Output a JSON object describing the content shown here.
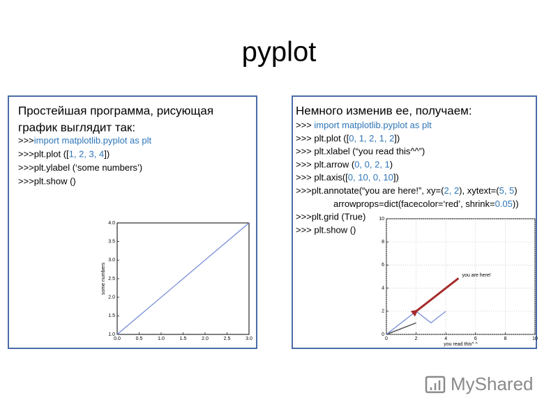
{
  "title": "pyplot",
  "left_panel": {
    "heading": [
      "Простейшая программа, рисующая",
      "график выглядит так:"
    ],
    "code": [
      [
        {
          "text": ">>>",
          "color": "#000000"
        },
        {
          "text": "import matplotlib.pyplot as plt",
          "color": "#2e75b6"
        }
      ],
      [
        {
          "text": ">>>plt.plot ([",
          "color": "#000000"
        },
        {
          "text": "1, 2, 3, 4",
          "color": "#2e75b6"
        },
        {
          "text": "])",
          "color": "#000000"
        }
      ],
      [
        {
          "text": ">>>plt.ylabel (‘some numbers’)",
          "color": "#000000"
        }
      ],
      [
        {
          "text": ">>>plt.show ()",
          "color": "#000000"
        }
      ]
    ]
  },
  "right_panel": {
    "heading": [
      "Немного изменив ее, получаем:"
    ],
    "code": [
      [
        {
          "text": ">>> ",
          "color": "#000000"
        },
        {
          "text": "import matplotlib.pyplot as plt",
          "color": "#2e75b6"
        }
      ],
      [
        {
          "text": ">>> plt.plot ([",
          "color": "#000000"
        },
        {
          "text": "0, 1, 2, 1, 2",
          "color": "#2e75b6"
        },
        {
          "text": "])",
          "color": "#000000"
        }
      ],
      [
        {
          "text": ">>> plt.xlabel (“you read this^^”)",
          "color": "#000000"
        }
      ],
      [
        {
          "text": ">>> plt.arrow (",
          "color": "#000000"
        },
        {
          "text": "0, 0, 2, 1",
          "color": "#2e75b6"
        },
        {
          "text": ")",
          "color": "#000000"
        }
      ],
      [
        {
          "text": ">>> plt.axis([",
          "color": "#000000"
        },
        {
          "text": "0, 10, 0, 10",
          "color": "#2e75b6"
        },
        {
          "text": "])",
          "color": "#000000"
        }
      ],
      [
        {
          "text": ">>>plt.annotate(“you are here!”, xy=(",
          "color": "#000000"
        },
        {
          "text": "2, 2",
          "color": "#2e75b6"
        },
        {
          "text": "), xytext=(",
          "color": "#000000"
        },
        {
          "text": "5, 5",
          "color": "#2e75b6"
        },
        {
          "text": ")",
          "color": "#000000"
        }
      ],
      [
        {
          "text": "arrowprops=dict(facecolor=‘red’, shrink=",
          "color": "#000000"
        },
        {
          "text": "0.05",
          "color": "#2e75b6"
        },
        {
          "text": "))",
          "color": "#000000"
        }
      ],
      [
        {
          "text": ">>>plt.grid (True)",
          "color": "#000000"
        }
      ],
      [
        {
          "text": ">>> plt.show ()",
          "color": "#000000"
        }
      ]
    ]
  },
  "left_chart": {
    "type": "line",
    "ylabel": "some numbers",
    "x": [
      0,
      1,
      2,
      3
    ],
    "series": [
      {
        "color": "#6f86d6",
        "values": [
          1,
          2,
          3,
          4
        ]
      }
    ],
    "xlim": [
      0,
      3
    ],
    "ylim": [
      1,
      4
    ],
    "xticks": [
      {
        "value": 0,
        "label": "0.0"
      },
      {
        "value": 0.5,
        "label": "0.5"
      },
      {
        "value": 1,
        "label": "1.0"
      },
      {
        "value": 1.5,
        "label": "1.5"
      },
      {
        "value": 2,
        "label": "2.0"
      },
      {
        "value": 2.5,
        "label": "2.5"
      },
      {
        "value": 3,
        "label": "3.0"
      }
    ],
    "yticks": [
      {
        "value": 1,
        "label": "1.0"
      },
      {
        "value": 1.5,
        "label": "1.5"
      },
      {
        "value": 2,
        "label": "2.0"
      },
      {
        "value": 2.5,
        "label": "2.5"
      },
      {
        "value": 3,
        "label": "3.0"
      },
      {
        "value": 3.5,
        "label": "3.5"
      },
      {
        "value": 4,
        "label": "4.0"
      }
    ],
    "grid": false
  },
  "right_chart": {
    "type": "line",
    "xlabel": "you read this^ ^",
    "x": [
      0,
      1,
      2,
      3,
      4
    ],
    "series": [
      {
        "color": "#6f86d6",
        "values": [
          0,
          1,
          2,
          1,
          2
        ]
      }
    ],
    "xlim": [
      0,
      10
    ],
    "ylim": [
      0,
      10
    ],
    "xticks": [
      0,
      2,
      4,
      6,
      8,
      10
    ],
    "yticks": [
      0,
      2,
      4,
      6,
      8,
      10
    ],
    "grid": true,
    "arrow": {
      "x": 0,
      "y": 0,
      "dx": 2,
      "dy": 1,
      "color": "#555555"
    },
    "annotation": {
      "text": "you are here!",
      "xy": [
        2,
        2
      ],
      "xytext": [
        5,
        5
      ],
      "color": "#a52a2a"
    }
  },
  "watermark": "MyShared"
}
